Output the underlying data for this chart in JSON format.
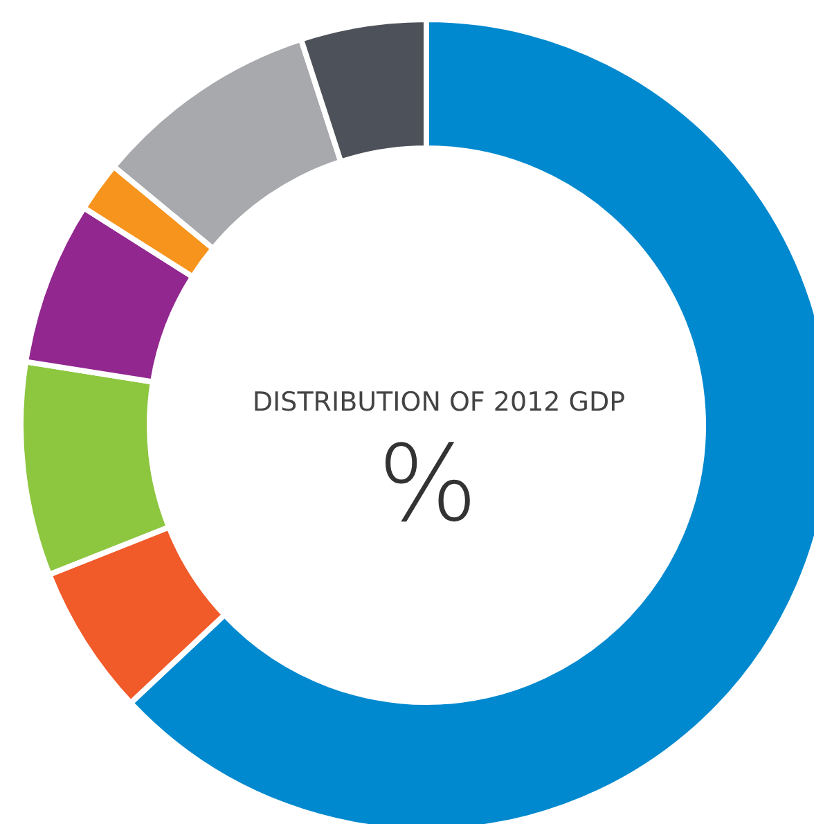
{
  "chart_data": {
    "type": "donut",
    "title": "DISTRIBUTION OF 2012 GDP",
    "subtitle": "%",
    "categories": [
      null,
      null,
      null,
      null,
      null,
      null,
      null
    ],
    "values": [
      63,
      6,
      8.5,
      6.5,
      2,
      9,
      5
    ],
    "colors": [
      "#0089cf",
      "#f15a29",
      "#8dc63f",
      "#92278f",
      "#f7941d",
      "#a7a9ac",
      "#4d5159"
    ]
  }
}
